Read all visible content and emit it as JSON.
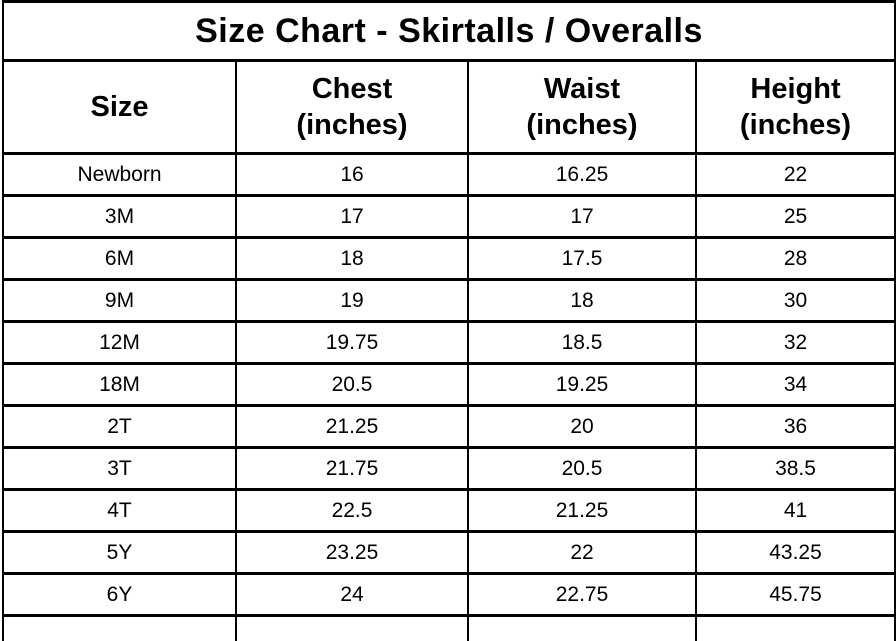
{
  "title": "Size Chart - Skirtalls / Overalls",
  "table": {
    "columns": [
      {
        "label": "Size",
        "sublabel": ""
      },
      {
        "label": "Chest",
        "sublabel": "(inches)"
      },
      {
        "label": "Waist",
        "sublabel": "(inches)"
      },
      {
        "label": "Height",
        "sublabel": "(inches)"
      }
    ],
    "rows": [
      {
        "size": "Newborn",
        "chest": "16",
        "waist": "16.25",
        "height": "22"
      },
      {
        "size": "3M",
        "chest": "17",
        "waist": "17",
        "height": "25"
      },
      {
        "size": "6M",
        "chest": "18",
        "waist": "17.5",
        "height": "28"
      },
      {
        "size": "9M",
        "chest": "19",
        "waist": "18",
        "height": "30"
      },
      {
        "size": "12M",
        "chest": "19.75",
        "waist": "18.5",
        "height": "32"
      },
      {
        "size": "18M",
        "chest": "20.5",
        "waist": "19.25",
        "height": "34"
      },
      {
        "size": "2T",
        "chest": "21.25",
        "waist": "20",
        "height": "36"
      },
      {
        "size": "3T",
        "chest": "21.75",
        "waist": "20.5",
        "height": "38.5"
      },
      {
        "size": "4T",
        "chest": "22.5",
        "waist": "21.25",
        "height": "41"
      },
      {
        "size": "5Y",
        "chest": "23.25",
        "waist": "22",
        "height": "43.25"
      },
      {
        "size": "6Y",
        "chest": "24",
        "waist": "22.75",
        "height": "45.75"
      }
    ]
  },
  "colors": {
    "border": "#000000",
    "text": "#000000",
    "background": "#ffffff"
  },
  "chart_data": {
    "type": "table",
    "title": "Size Chart - Skirtalls / Overalls",
    "columns": [
      "Size",
      "Chest (inches)",
      "Waist (inches)",
      "Height (inches)"
    ],
    "rows": [
      [
        "Newborn",
        16,
        16.25,
        22
      ],
      [
        "3M",
        17,
        17,
        25
      ],
      [
        "6M",
        18,
        17.5,
        28
      ],
      [
        "9M",
        19,
        18,
        30
      ],
      [
        "12M",
        19.75,
        18.5,
        32
      ],
      [
        "18M",
        20.5,
        19.25,
        34
      ],
      [
        "2T",
        21.25,
        20,
        36
      ],
      [
        "3T",
        21.75,
        20.5,
        38.5
      ],
      [
        "4T",
        22.5,
        21.25,
        41
      ],
      [
        "5Y",
        23.25,
        22,
        43.25
      ],
      [
        "6Y",
        24,
        22.75,
        45.75
      ]
    ]
  }
}
